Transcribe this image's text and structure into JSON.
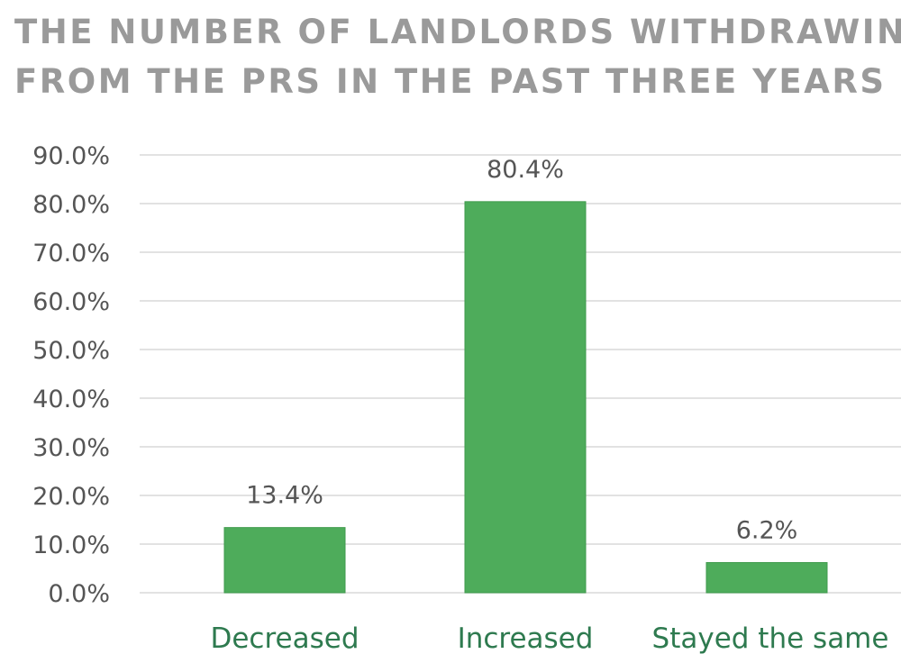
{
  "title": {
    "line1": "THE NUMBER OF LANDLORDS WITHDRAWING",
    "line2": "FROM THE PRS IN THE PAST THREE YEARS"
  },
  "colors": {
    "bar": "#4eac5b",
    "bar_stroke": "#3f9a4c",
    "category_label": "#2e7a4f",
    "tick_label": "#555555",
    "gridline": "#d9d9d9",
    "title": "#9a9a9a"
  },
  "chart_data": {
    "type": "bar",
    "title": "THE NUMBER OF LANDLORDS WITHDRAWING FROM THE PRS IN THE PAST THREE YEARS",
    "categories": [
      "Decreased",
      "Increased",
      "Stayed the same"
    ],
    "values": [
      13.4,
      80.4,
      6.2
    ],
    "data_labels": [
      "13.4%",
      "80.4%",
      "6.2%"
    ],
    "ylim": [
      0,
      90
    ],
    "yticks": [
      0,
      10,
      20,
      30,
      40,
      50,
      60,
      70,
      80,
      90
    ],
    "ytick_labels": [
      "0.0%",
      "10.0%",
      "20.0%",
      "30.0%",
      "40.0%",
      "50.0%",
      "60.0%",
      "70.0%",
      "80.0%",
      "90.0%"
    ],
    "xlabel": "",
    "ylabel": "",
    "grid": true,
    "legend": "none"
  }
}
